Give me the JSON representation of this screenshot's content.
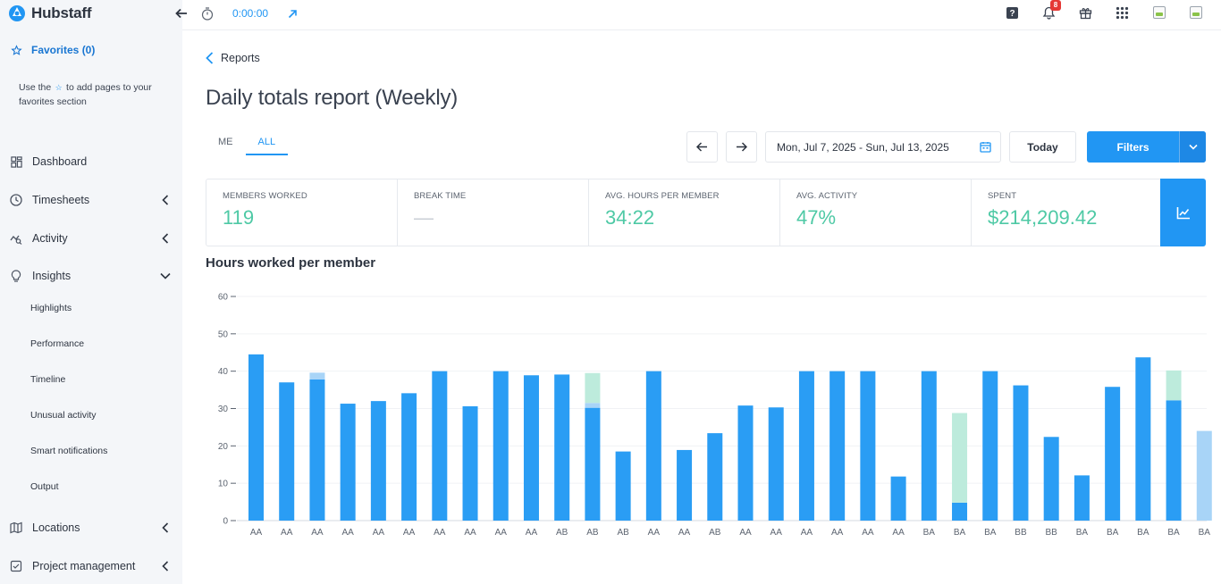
{
  "app": {
    "name": "Hubstaff"
  },
  "topbar": {
    "timer": "0:00:00",
    "notification_count": "8"
  },
  "sidebar": {
    "favorites_label": "Favorites (0)",
    "favorites_hint_before": "Use the",
    "favorites_hint_after": "to add pages to your favorites section",
    "items": [
      {
        "label": "Dashboard",
        "icon": "dashboard-icon"
      },
      {
        "label": "Timesheets",
        "icon": "clock-icon"
      },
      {
        "label": "Activity",
        "icon": "activity-icon"
      },
      {
        "label": "Insights",
        "icon": "lightbulb-icon"
      },
      {
        "label": "Locations",
        "icon": "map-icon"
      },
      {
        "label": "Project management",
        "icon": "checklist-icon"
      }
    ],
    "insights_sub": [
      "Highlights",
      "Performance",
      "Timeline",
      "Unusual activity",
      "Smart notifications",
      "Output"
    ]
  },
  "breadcrumb": {
    "label": "Reports"
  },
  "page": {
    "title": "Daily totals report (Weekly)"
  },
  "tabs": [
    {
      "label": "ME"
    },
    {
      "label": "ALL"
    }
  ],
  "toolbar": {
    "date_range": "Mon, Jul 7, 2025 - Sun, Jul 13, 2025",
    "today_label": "Today",
    "filters_label": "Filters"
  },
  "stats": [
    {
      "label": "Members worked",
      "value": "119"
    },
    {
      "label": "Break time",
      "value": "—"
    },
    {
      "label": "Avg. hours per member",
      "value": "34:22"
    },
    {
      "label": "Avg. activity",
      "value": "47%"
    },
    {
      "label": "Spent",
      "value": "$214,209.42"
    }
  ],
  "colors": {
    "accent": "#2196f3",
    "stat_value": "#4ec9a5",
    "bar_primary": "#2a9df4",
    "bar_light_blue": "#a8d4f7",
    "bar_light_green": "#bdebdc"
  },
  "chart_data": {
    "type": "bar",
    "title": "Hours worked per member",
    "ylim": [
      0,
      60
    ],
    "yticks": [
      0,
      10,
      20,
      30,
      40,
      50,
      60
    ],
    "categories": [
      "AA",
      "AA",
      "AA",
      "AA",
      "AA",
      "AA",
      "AA",
      "AA",
      "AA",
      "AA",
      "AB",
      "AB",
      "AB",
      "AA",
      "AA",
      "AB",
      "AA",
      "AA",
      "AA",
      "AA",
      "AA",
      "AA",
      "BA",
      "BA",
      "BA",
      "BB",
      "BB",
      "BA",
      "BA",
      "BA",
      "BA",
      "BA"
    ],
    "series": [
      {
        "values": [
          44.5,
          37,
          37.8,
          31.3,
          32,
          34.1,
          40,
          30.6,
          40,
          38.9,
          39.1,
          30.2,
          18.5,
          40,
          18.9,
          23.4,
          30.8,
          30.3,
          40,
          40,
          40,
          11.8,
          40,
          4.8,
          40,
          36.2,
          22.4,
          12.1,
          35.8,
          43.7,
          32.2,
          0
        ]
      },
      {
        "values": [
          0,
          0,
          1.8,
          0,
          0,
          0,
          0,
          0,
          0,
          0,
          0,
          1.3,
          0,
          0,
          0,
          0,
          0,
          0,
          0,
          0,
          0,
          0,
          0,
          0,
          0,
          0,
          0,
          0,
          0,
          0,
          0,
          24
        ]
      },
      {
        "values": [
          0,
          0,
          0,
          0,
          0,
          0,
          0,
          0,
          0,
          0,
          0,
          8,
          0,
          0,
          0,
          0,
          0,
          0,
          0,
          0,
          0,
          0,
          0,
          24,
          0,
          0,
          0,
          0,
          0,
          0,
          8,
          0
        ]
      }
    ]
  }
}
